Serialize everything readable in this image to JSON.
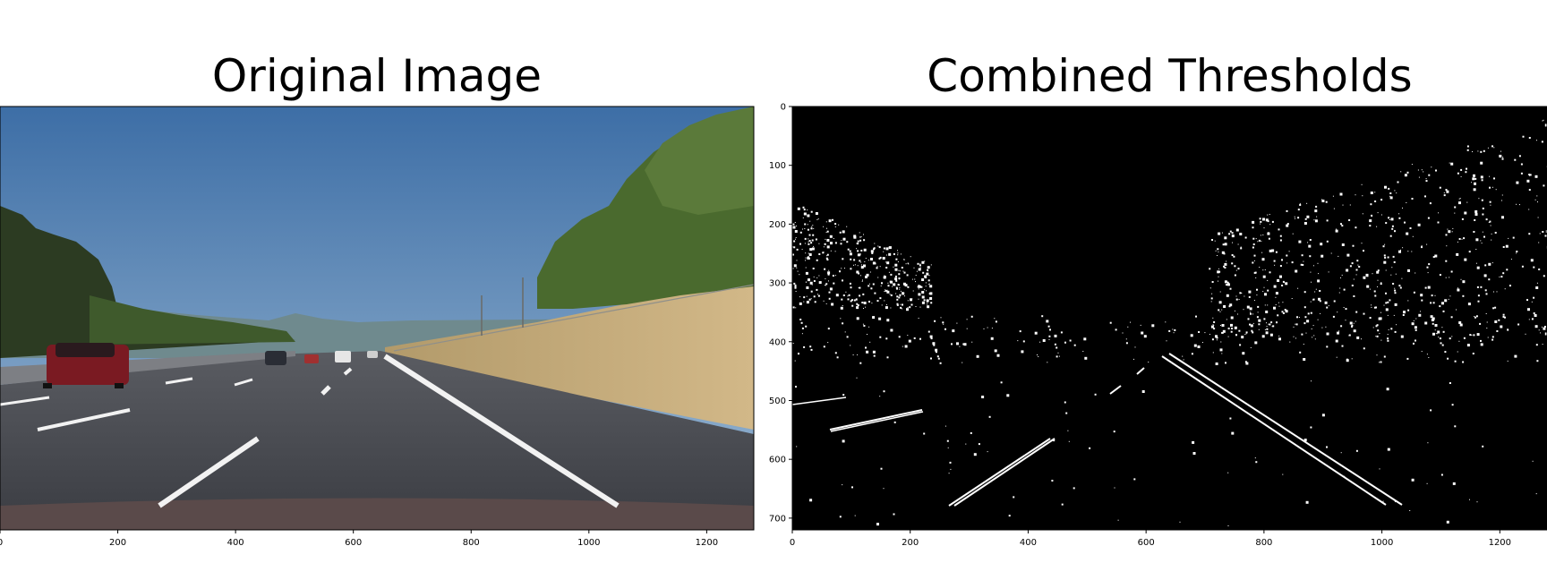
{
  "chart_data": [
    {
      "type": "image",
      "title": "Original Image",
      "xlim": [
        0,
        1280
      ],
      "ylim": [
        720,
        0
      ],
      "x_ticks": [
        "0",
        "200",
        "400",
        "600",
        "800",
        "1000",
        "1200"
      ],
      "y_ticks": [],
      "content": "dashcam photo of a highway with lane lines, trees and hills under a blue sky",
      "colors": {
        "sky_top": "#3d6ea6",
        "sky_bottom": "#9dbad4",
        "road": "#4a4c52",
        "grass": "#c4a878",
        "trees": "#4a6a2e"
      }
    },
    {
      "type": "image",
      "title": "Combined Thresholds",
      "xlim": [
        0,
        1280
      ],
      "ylim": [
        720,
        0
      ],
      "x_ticks": [
        "0",
        "200",
        "400",
        "600",
        "800",
        "1000",
        "1200"
      ],
      "y_ticks": [
        "0",
        "100",
        "200",
        "300",
        "400",
        "500",
        "600",
        "700"
      ],
      "content": "binary threshold image: white lane line edges and speckled tree edges on black",
      "colors": {
        "background": "#000000",
        "foreground": "#ffffff"
      }
    }
  ]
}
